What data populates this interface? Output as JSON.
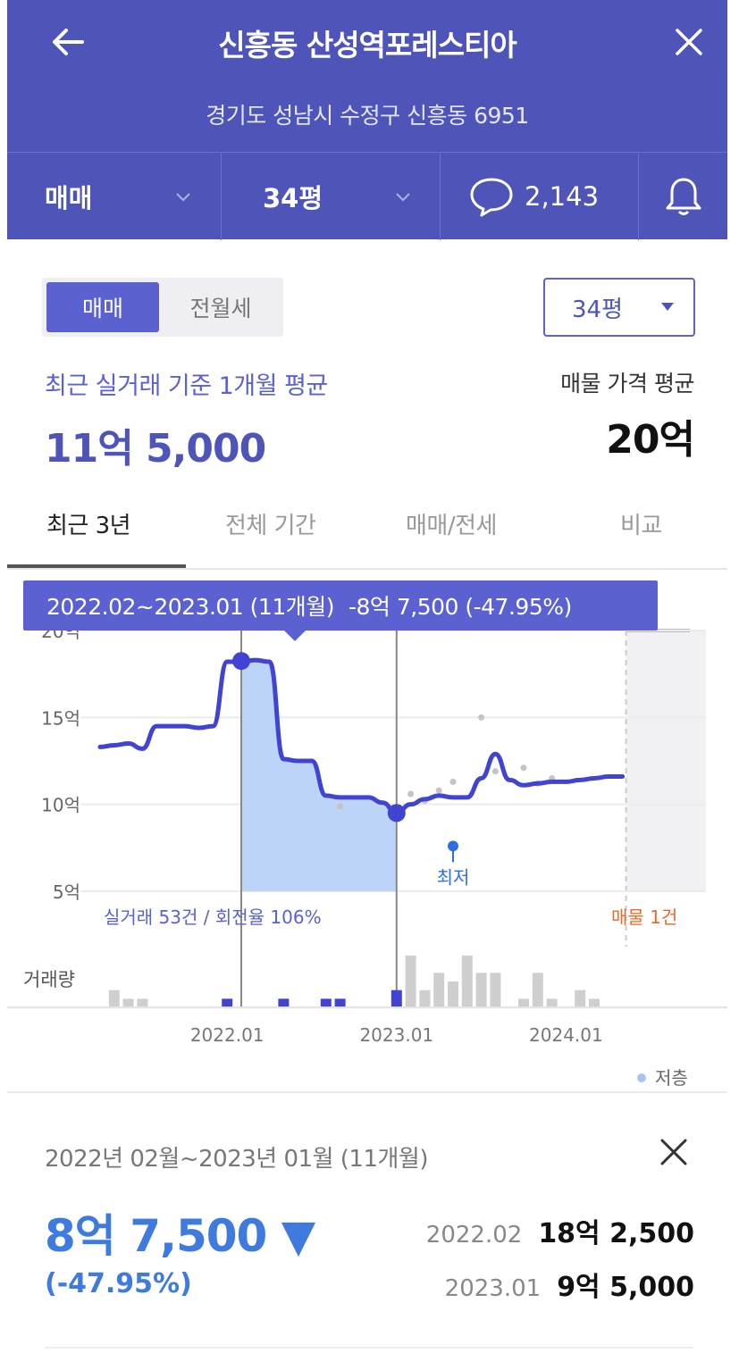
{
  "header": {
    "title": "신흥동 산성역포레스티아",
    "address": "경기도 성남시 수정구 신흥동 6951",
    "deal_type": "매매",
    "size": "34평",
    "comments_count": "2,143"
  },
  "segment": {
    "active": "매매",
    "inactive": "전월세"
  },
  "size_select": {
    "value": "34평"
  },
  "summary": {
    "avg_label": "최근 실거래 기준 1개월 평균",
    "avg_price": "11억 5,000",
    "ask_label": "매물 가격 평균",
    "ask_price": "20억"
  },
  "tabs": [
    {
      "label": "최근 3년",
      "active": true
    },
    {
      "label": "전체 기간",
      "active": false
    },
    {
      "label": "매매/전세",
      "active": false
    },
    {
      "label": "비교",
      "active": false
    }
  ],
  "tooltip": {
    "period": "2022.02~2023.01 (11개월)",
    "change": "-8억 7,500 (-47.95%)"
  },
  "chart_data": {
    "type": "line",
    "y_ticks": [
      "20억",
      "15억",
      "10억",
      "5억"
    ],
    "ylim": [
      5,
      20
    ],
    "x_ticks": [
      "2022.01",
      "2023.01",
      "2024.01"
    ],
    "x_months": [
      "2021.04",
      "2021.05",
      "2021.06",
      "2021.07",
      "2021.08",
      "2021.09",
      "2021.10",
      "2021.11",
      "2021.12",
      "2022.01",
      "2022.02",
      "2022.03",
      "2022.04",
      "2022.05",
      "2022.06",
      "2022.07",
      "2022.08",
      "2022.09",
      "2022.10",
      "2022.11",
      "2022.12",
      "2023.01",
      "2023.02",
      "2023.03",
      "2023.04",
      "2023.05",
      "2023.06",
      "2023.07",
      "2023.08",
      "2023.09",
      "2023.10",
      "2023.11",
      "2023.12",
      "2024.01",
      "2024.02",
      "2024.03",
      "2024.04",
      "2024.05"
    ],
    "price_line": [
      13.3,
      13.4,
      13.5,
      13.2,
      14.5,
      14.5,
      14.5,
      14.4,
      14.5,
      18.2,
      18.2,
      18.3,
      18.2,
      12.6,
      12.5,
      12.5,
      10.5,
      10.4,
      10.4,
      10.4,
      10.1,
      9.5,
      10,
      10.3,
      10.5,
      10.4,
      10.4,
      11.5,
      12.9,
      11.4,
      11.1,
      11.2,
      11.3,
      11.3,
      11.4,
      11.5,
      11.6,
      11.6
    ],
    "highlight": {
      "start": "2022.02",
      "end": "2023.01",
      "start_price": 18.25,
      "end_price": 9.5
    },
    "lowest_marker": {
      "x": "2023.05",
      "value": 7.6,
      "label": "최저"
    },
    "scatter_points": [
      {
        "x": "2022.09",
        "y": 9.9
      },
      {
        "x": "2023.01",
        "y": 9.5
      },
      {
        "x": "2023.02",
        "y": 10.6
      },
      {
        "x": "2023.03",
        "y": 10.2
      },
      {
        "x": "2023.04",
        "y": 10.8
      },
      {
        "x": "2023.05",
        "y": 11.3
      },
      {
        "x": "2023.07",
        "y": 15.0
      },
      {
        "x": "2023.08",
        "y": 11.9
      },
      {
        "x": "2023.10",
        "y": 12.1
      },
      {
        "x": "2023.11",
        "y": 11.2
      },
      {
        "x": "2023.12",
        "y": 11.5
      }
    ],
    "volume": {
      "months": [
        "2021.05",
        "2021.06",
        "2021.07",
        "2022.01",
        "2022.05",
        "2022.08",
        "2022.09",
        "2023.01",
        "2023.02",
        "2023.03",
        "2023.04",
        "2023.05",
        "2023.06",
        "2023.07",
        "2023.08",
        "2023.10",
        "2023.11",
        "2023.12",
        "2024.02",
        "2024.03"
      ],
      "values": [
        2,
        1,
        1,
        1,
        1,
        1,
        1,
        2,
        6,
        2,
        4,
        3,
        6,
        4,
        4,
        1,
        4,
        1,
        2,
        1
      ],
      "highlighted": [
        "2022.01",
        "2022.05",
        "2022.08",
        "2022.09",
        "2023.01"
      ]
    },
    "stats_label": "실거래 53건 / 회전율 106%",
    "listing_label": "매물 1건",
    "volume_label": "거래량",
    "legend_label": "저층",
    "colors": {
      "line": "#4044d0",
      "fill": "#b8d2f7",
      "listing": "#e46b2a",
      "lowest": "#2f6fe0",
      "volume": "#cfcfcf",
      "volume_hl": "#4044d0"
    }
  },
  "period_detail": {
    "label": "2022년 02월~2023년 01월 (11개월)",
    "change_amount": "8억 7,500 ▼",
    "change_pct": "(-47.95%)",
    "start": {
      "date": "2022.02",
      "price": "18억 2,500"
    },
    "end": {
      "date": "2023.01",
      "price": "9억 5,000"
    }
  }
}
